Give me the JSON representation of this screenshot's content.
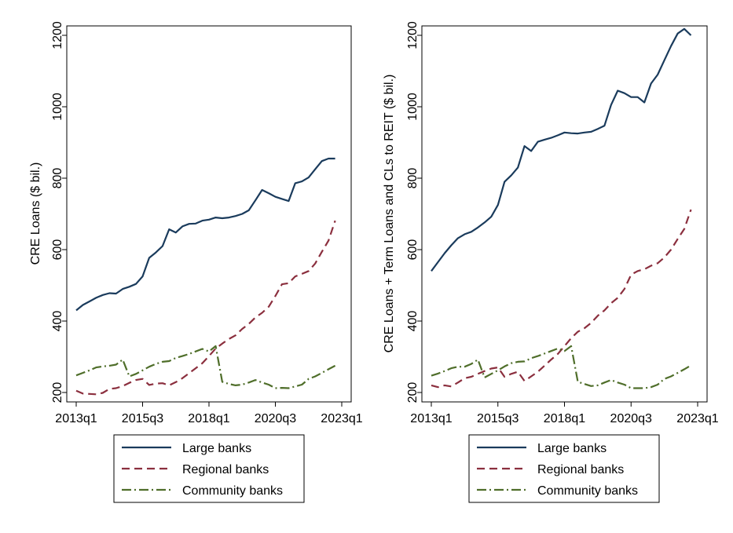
{
  "colors": {
    "large": "#1a3b5c",
    "regional": "#8b2f3e",
    "community": "#4f6e2a",
    "axis": "#000000"
  },
  "chart_data": [
    {
      "type": "line",
      "title": "",
      "xlabel": "",
      "ylabel": "CRE Loans ($ bil.)",
      "xlim": [
        "2013q1",
        "2023q1"
      ],
      "ylim": [
        200,
        1200
      ],
      "yticks": [
        200,
        400,
        600,
        800,
        1000,
        1200
      ],
      "xticks": [
        "2013q1",
        "2015q3",
        "2018q1",
        "2020q3",
        "2023q1"
      ],
      "legend": "below",
      "grid": false,
      "x": [
        "2013q1",
        "2013q2",
        "2013q3",
        "2013q4",
        "2014q1",
        "2014q2",
        "2014q3",
        "2014q4",
        "2015q1",
        "2015q2",
        "2015q3",
        "2015q4",
        "2016q1",
        "2016q2",
        "2016q3",
        "2016q4",
        "2017q1",
        "2017q2",
        "2017q3",
        "2017q4",
        "2018q1",
        "2018q2",
        "2018q3",
        "2018q4",
        "2019q1",
        "2019q2",
        "2019q3",
        "2019q4",
        "2020q1",
        "2020q2",
        "2020q3",
        "2020q4",
        "2021q1",
        "2021q2",
        "2021q3",
        "2021q4",
        "2022q1",
        "2022q2",
        "2022q3",
        "2022q4"
      ],
      "series": [
        {
          "name": "Large banks",
          "color_key": "large",
          "dash": "solid",
          "values": [
            430,
            445,
            455,
            465,
            473,
            478,
            477,
            490,
            496,
            504,
            525,
            577,
            592,
            610,
            657,
            648,
            665,
            672,
            673,
            681,
            684,
            690,
            688,
            690,
            694,
            700,
            710,
            738,
            767,
            758,
            748,
            742,
            736,
            786,
            791,
            802,
            825,
            848,
            855,
            855
          ]
        },
        {
          "name": "Regional banks",
          "color_key": "regional",
          "dash": "dash",
          "values": [
            205,
            197,
            196,
            195,
            199,
            210,
            212,
            218,
            227,
            235,
            238,
            221,
            225,
            226,
            220,
            229,
            240,
            254,
            268,
            282,
            302,
            323,
            337,
            350,
            360,
            378,
            392,
            410,
            423,
            440,
            470,
            503,
            506,
            525,
            532,
            540,
            561,
            594,
            625,
            681
          ]
        },
        {
          "name": "Community banks",
          "color_key": "community",
          "dash": "dashdot",
          "values": [
            248,
            255,
            262,
            270,
            273,
            275,
            278,
            292,
            245,
            252,
            262,
            272,
            280,
            286,
            288,
            297,
            302,
            308,
            315,
            322,
            315,
            330,
            230,
            224,
            220,
            222,
            228,
            235,
            228,
            222,
            212,
            213,
            212,
            217,
            222,
            238,
            245,
            255,
            265,
            275
          ]
        }
      ]
    },
    {
      "type": "line",
      "title": "",
      "xlabel": "",
      "ylabel": "CRE Loans + Term Loans and CLs to REIT ($ bil.)",
      "xlim": [
        "2013q1",
        "2023q1"
      ],
      "ylim": [
        200,
        1200
      ],
      "yticks": [
        200,
        400,
        600,
        800,
        1000,
        1200
      ],
      "xticks": [
        "2013q1",
        "2015q3",
        "2018q1",
        "2020q3",
        "2023q1"
      ],
      "legend": "below",
      "grid": false,
      "x": [
        "2013q1",
        "2013q2",
        "2013q3",
        "2013q4",
        "2014q1",
        "2014q2",
        "2014q3",
        "2014q4",
        "2015q1",
        "2015q2",
        "2015q3",
        "2015q4",
        "2016q1",
        "2016q2",
        "2016q3",
        "2016q4",
        "2017q1",
        "2017q2",
        "2017q3",
        "2017q4",
        "2018q1",
        "2018q2",
        "2018q3",
        "2018q4",
        "2019q1",
        "2019q2",
        "2019q3",
        "2019q4",
        "2020q1",
        "2020q2",
        "2020q3",
        "2020q4",
        "2021q1",
        "2021q2",
        "2021q3",
        "2021q4",
        "2022q1",
        "2022q2",
        "2022q3",
        "2022q4"
      ],
      "series": [
        {
          "name": "Large banks",
          "color_key": "large",
          "dash": "solid",
          "values": [
            540,
            565,
            590,
            612,
            632,
            643,
            650,
            662,
            676,
            692,
            725,
            790,
            808,
            830,
            890,
            876,
            902,
            908,
            913,
            920,
            928,
            926,
            925,
            928,
            930,
            938,
            947,
            1005,
            1045,
            1038,
            1027,
            1027,
            1012,
            1065,
            1090,
            1130,
            1170,
            1205,
            1218,
            1200
          ]
        },
        {
          "name": "Regional banks",
          "color_key": "regional",
          "dash": "dash",
          "values": [
            220,
            215,
            220,
            217,
            228,
            240,
            244,
            252,
            260,
            267,
            270,
            244,
            252,
            258,
            232,
            245,
            258,
            275,
            292,
            308,
            330,
            352,
            370,
            380,
            395,
            415,
            430,
            450,
            465,
            490,
            530,
            540,
            545,
            555,
            562,
            578,
            600,
            630,
            658,
            712
          ]
        },
        {
          "name": "Community banks",
          "color_key": "community",
          "dash": "dashdot",
          "values": [
            247,
            253,
            260,
            268,
            272,
            272,
            280,
            292,
            242,
            252,
            262,
            273,
            282,
            286,
            287,
            296,
            302,
            309,
            316,
            323,
            316,
            330,
            230,
            224,
            218,
            220,
            228,
            235,
            228,
            222,
            212,
            212,
            212,
            215,
            222,
            238,
            245,
            255,
            265,
            276
          ]
        }
      ]
    }
  ]
}
